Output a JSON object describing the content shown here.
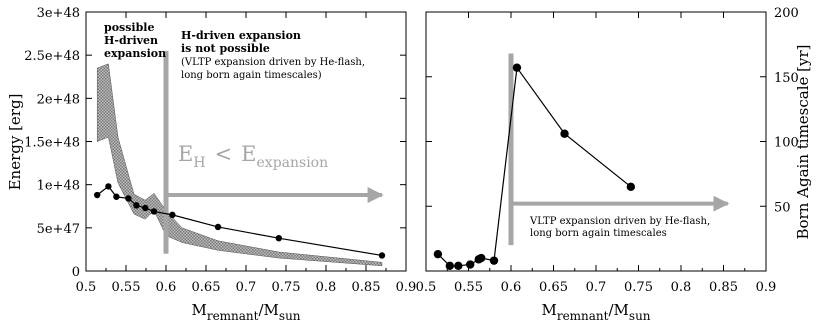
{
  "chart_data": [
    {
      "type": "line",
      "ylabel": "Energy [erg]",
      "xlabel_main": "M",
      "xlabel_sub1": "remnant",
      "xlabel_sep": "/M",
      "xlabel_sub2": "sun",
      "xlim": [
        0.5,
        0.9
      ],
      "ylim": [
        0,
        3e+48
      ],
      "x_ticks": [
        0.5,
        0.55,
        0.6,
        0.65,
        0.7,
        0.75,
        0.8,
        0.85,
        0.9
      ],
      "x_tick_labels": [
        "0.5",
        "0.55",
        "0.6",
        "0.65",
        "0.7",
        "0.75",
        "0.8",
        "0.85",
        "0.9"
      ],
      "y_ticks": [
        0,
        5e+47,
        1e+48,
        1.5e+48,
        2e+48,
        2.5e+48,
        3e+48
      ],
      "y_tick_labels": [
        "0",
        "5e+47",
        "1e+48",
        "1.5e+48",
        "2e+48",
        "2.5e+48",
        "3e+48"
      ],
      "series": [
        {
          "style": "line-markers",
          "x": [
            0.514,
            0.528,
            0.538,
            0.553,
            0.563,
            0.574,
            0.585,
            0.608,
            0.665,
            0.741,
            0.87
          ],
          "y": [
            8.8e+47,
            9.8e+47,
            8.6e+47,
            8.4e+47,
            7.6e+47,
            7.3e+47,
            6.9e+47,
            6.5e+47,
            5.1e+47,
            3.8e+47,
            1.8e+47
          ]
        },
        {
          "style": "shaded-band",
          "x": [
            0.514,
            0.528,
            0.54,
            0.56,
            0.574,
            0.585,
            0.6,
            0.62,
            0.665,
            0.741,
            0.87
          ],
          "y_low": [
            1.5e+48,
            1.55e+48,
            1.02e+48,
            6.6e+47,
            6e+47,
            7e+47,
            4.1e+47,
            3.3e+47,
            2.4e+47,
            1.5e+47,
            6e+46
          ],
          "y_high": [
            2.35e+48,
            2.4e+48,
            1.55e+48,
            8.9e+47,
            8.2e+47,
            9e+47,
            7e+47,
            5e+47,
            3.5e+47,
            2.2e+47,
            1e+47
          ]
        }
      ],
      "vertical_line_x": 0.6,
      "annotations": {
        "possible": [
          "possible",
          "H-driven",
          "expansion"
        ],
        "not_possible": [
          "H-driven expansion",
          "is not possible"
        ],
        "not_possible_note": [
          "(VLTP expansion driven by He-flash,",
          "long born again timescales)"
        ],
        "inequality": {
          "e": "E",
          "sub_h": "H",
          "lt": "<",
          "sub_exp": "expansion"
        }
      }
    },
    {
      "type": "line",
      "ylabel": "Born Again timescale [yr]",
      "xlabel_main": "M",
      "xlabel_sub1": "remnant",
      "xlabel_sep": "/M",
      "xlabel_sub2": "sun",
      "xlim": [
        0.5,
        0.9
      ],
      "ylim": [
        0,
        200
      ],
      "x_ticks": [
        0.5,
        0.55,
        0.6,
        0.65,
        0.7,
        0.75,
        0.8,
        0.85,
        0.9
      ],
      "x_tick_labels": [
        "0.5",
        "0.55",
        "0.6",
        "0.65",
        "0.7",
        "0.75",
        "0.8",
        "0.85",
        "0.9"
      ],
      "y_ticks": [
        0,
        50,
        100,
        150,
        200
      ],
      "y_tick_labels": [
        "",
        "50",
        "100",
        "150",
        "200"
      ],
      "y_axis_side": "right",
      "series": [
        {
          "style": "line-markers",
          "x": [
            0.514,
            0.528,
            0.538,
            0.552,
            0.562,
            0.565,
            0.58,
            0.607,
            0.663,
            0.741
          ],
          "y": [
            13,
            4,
            4,
            5,
            9,
            10,
            8,
            157,
            106,
            65
          ]
        }
      ],
      "vertical_line_x": 0.6,
      "annotations": {
        "note": [
          "VLTP expansion driven by He-flash,",
          "long born again timescales"
        ]
      }
    }
  ]
}
